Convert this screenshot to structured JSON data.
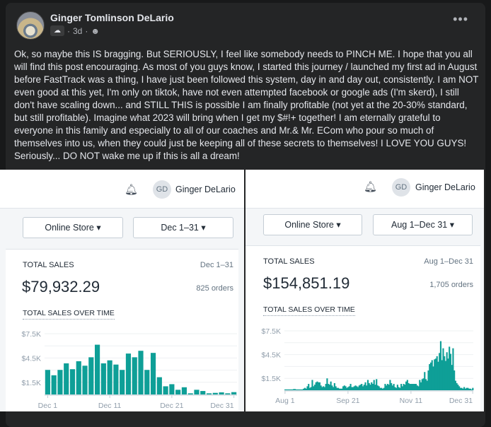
{
  "post": {
    "author": "Ginger Tomlinson DeLario",
    "time": "3d",
    "separator": "·",
    "audience_icon": "friends-icon",
    "badge_icon": "group-badge-icon",
    "more_icon": "•••",
    "text": "Ok, so maybe this IS bragging.  But SERIOUSLY, I feel like somebody needs to PINCH ME.   I hope that you all will find this post encouraging. As most of you guys know, I started this journey / launched my first ad in August before FastTrack was a thing,  I have just been followed this system, day in and day out, consistently.  I am NOT even good at this yet, I'm only on tiktok, have not even attempted facebook or google ads (I'm skerd), I still don't have scaling down... and STILL THIS is possible  I am finally profitable (not yet at the 20-30% standard, but still profitable).  Imagine what 2023 will bring when I get my $#!+ together!  I am eternally grateful to everyone in this family and especially to all of our coaches and Mr.& Mr. ECom who pour so much of themselves into us, when they could just be keeping all of these secrets to themselves!  I LOVE YOU GUYS!  Seriously... DO NOT wake me up if this is all a dream!"
  },
  "images": [
    {
      "initials": "GD",
      "user": "Ginger DeLario",
      "store_select": "Online Store",
      "date_select": "Dec 1–31",
      "total_label": "TOTAL SALES",
      "range": "Dec 1–31",
      "total": "$79,932.29",
      "orders": "825 orders",
      "chart_title": "TOTAL SALES OVER TIME"
    },
    {
      "initials": "GD",
      "user": "Ginger DeLario",
      "store_select": "Online Store",
      "date_select": "Aug 1–Dec 31",
      "total_label": "TOTAL SALES",
      "range": "Aug 1–Dec 31",
      "total": "$154,851.19",
      "orders": "1,705 orders",
      "chart_title": "TOTAL SALES OVER TIME"
    }
  ],
  "colors": {
    "bar": "#0e9f97",
    "bg": "#242526"
  },
  "chart_data": [
    {
      "type": "bar",
      "title": "TOTAL SALES OVER TIME",
      "ylabel": "",
      "xlabel": "",
      "yunit": "K USD",
      "ylim": [
        0,
        7.5
      ],
      "yticks": [
        "$7.5K",
        "$4.5K",
        "$1.5K"
      ],
      "ytick_values": [
        7.5,
        4.5,
        1.5
      ],
      "xticks": [
        "Dec 1",
        "Dec 11",
        "Dec 21",
        "Dec 31"
      ],
      "xtick_index": [
        0,
        10,
        20,
        30
      ],
      "grid": true,
      "values": [
        3.03,
        2.37,
        3.03,
        3.84,
        3.12,
        4.1,
        3.55,
        4.59,
        6.14,
        3.84,
        4.21,
        3.69,
        3.03,
        5.05,
        4.59,
        5.39,
        3.03,
        5.13,
        2.13,
        1.01,
        1.27,
        0.58,
        0.89,
        0.14,
        0.58,
        0.43,
        0.14,
        0.2,
        0.26,
        0.14,
        0.29
      ]
    },
    {
      "type": "area",
      "title": "TOTAL SALES OVER TIME",
      "ylabel": "",
      "xlabel": "",
      "yunit": "K USD",
      "ylim": [
        0,
        7.5
      ],
      "yticks": [
        "$7.5K",
        "$4.5K",
        "$1.5K"
      ],
      "ytick_values": [
        7.5,
        4.5,
        1.5
      ],
      "xticks": [
        "Aug 1",
        "Sep 21",
        "Nov 11",
        "Dec 31"
      ],
      "xtick_index": [
        0,
        51,
        102,
        152
      ],
      "grid": true,
      "values": [
        0.1,
        0.1,
        0.1,
        0.1,
        0.1,
        0.1,
        0.1,
        0.15,
        0.15,
        0.1,
        0.1,
        0.1,
        0.1,
        0.1,
        0.1,
        0.2,
        0.3,
        0.2,
        0.5,
        0.8,
        0.3,
        0.4,
        1.3,
        0.5,
        0.7,
        1.0,
        1.1,
        1.0,
        1.0,
        0.6,
        0.4,
        0.5,
        0.4,
        0.8,
        1.5,
        0.8,
        0.7,
        1.1,
        0.6,
        0.4,
        0.9,
        0.5,
        0.3,
        0.3,
        0.2,
        0.2,
        0.2,
        0.5,
        0.6,
        0.5,
        0.3,
        0.4,
        0.5,
        0.8,
        0.4,
        0.4,
        0.5,
        0.6,
        0.5,
        0.4,
        0.6,
        0.7,
        0.8,
        0.5,
        0.7,
        1.0,
        0.6,
        1.3,
        0.9,
        0.7,
        1.0,
        0.8,
        1.3,
        0.7,
        1.4,
        0.6,
        0.5,
        0.3,
        0.3,
        0.2,
        0.3,
        0.8,
        0.6,
        0.8,
        0.7,
        1.3,
        0.9,
        0.6,
        0.8,
        0.4,
        0.3,
        0.7,
        0.4,
        0.3,
        0.8,
        0.5,
        0.8,
        0.7,
        1.1,
        1.3,
        0.9,
        0.8,
        0.8,
        0.8,
        0.8,
        0.8,
        0.8,
        0.6,
        0.5,
        1.3,
        1.0,
        1.4,
        1.5,
        2.3,
        1.4,
        1.2,
        2.5,
        3.3,
        3.5,
        3.8,
        3.0,
        3.9,
        4.0,
        4.3,
        3.6,
        4.7,
        6.2,
        3.8,
        5.3,
        4.3,
        3.7,
        4.8,
        4.0,
        5.5,
        4.6,
        3.2,
        5.3,
        2.5,
        1.2,
        0.9,
        0.7,
        0.5,
        0.3,
        0.3,
        0.2,
        0.4,
        0.2,
        0.3,
        0.3,
        0.2,
        0.2,
        0.1,
        0.3
      ]
    }
  ]
}
